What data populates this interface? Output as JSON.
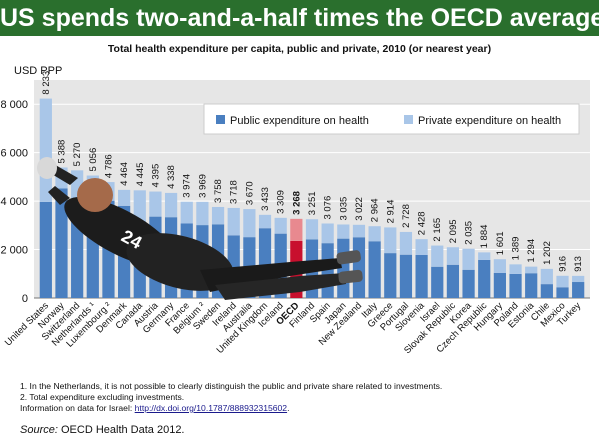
{
  "title": "US spends two-and-a-half times the OECD average",
  "chart_data": {
    "type": "bar",
    "subtitle": "Total health expenditure per capita, public and private, 2010 (or nearest year)",
    "ylabel": "USD PPP",
    "ylim": [
      0,
      9000
    ],
    "yticks": [
      0,
      2000,
      4000,
      6000,
      8000
    ],
    "ytick_labels": [
      "0",
      "2 000",
      "4 000",
      "6 000",
      "8 000"
    ],
    "stacked": true,
    "legend_placement": "top-right",
    "categories": [
      "United States",
      "Norway",
      "Switzerland",
      "Netherlands ¹",
      "Luxembourg ²",
      "Denmark",
      "Canada",
      "Austria",
      "Germany",
      "France",
      "Belgium ²",
      "Sweden",
      "Ireland",
      "Australia",
      "United Kingdom",
      "Iceland",
      "OECD",
      "Finland",
      "Spain",
      "Japan",
      "New Zealand",
      "Italy",
      "Greece",
      "Portugal",
      "Slovenia",
      "Israel",
      "Slovak Republic",
      "Korea",
      "Czech Republic",
      "Hungary",
      "Poland",
      "Estonia",
      "Chile",
      "Mexico",
      "Turkey"
    ],
    "total_labels": [
      "8 233",
      "5 388",
      "5 270",
      "5 056",
      "4 786",
      "4 464",
      "4 445",
      "4 395",
      "4 338",
      "3 974",
      "3 969",
      "3 758",
      "3 718",
      "3 670",
      "3 433",
      "3 309",
      "3 268",
      "3 251",
      "3 076",
      "3 035",
      "3 022",
      "2 964",
      "2 914",
      "2 728",
      "2 428",
      "2 165",
      "2 095",
      "2 035",
      "1 884",
      "1 601",
      "1 389",
      "1 294",
      "1 202",
      "916",
      "913"
    ],
    "series": [
      {
        "name": "Public expenditure on health",
        "color": "#4a7fc0",
        "highlight_color": "#c8102e",
        "values": [
          3967,
          4528,
          3420,
          4000,
          4017,
          3806,
          3157,
          3360,
          3336,
          3076,
          3010,
          3042,
          2586,
          2512,
          2881,
          2657,
          2356,
          2420,
          2264,
          2451,
          2508,
          2343,
          1853,
          1788,
          1777,
          1291,
          1372,
          1166,
          1573,
          1034,
          994,
          1023,
          573,
          443,
          660
        ]
      },
      {
        "name": "Private expenditure on health",
        "color": "#a9c6e8",
        "highlight_color": "#e8898f",
        "values": [
          4266,
          860,
          1850,
          1056,
          769,
          658,
          1288,
          1035,
          1002,
          898,
          959,
          716,
          1132,
          1158,
          552,
          652,
          912,
          831,
          812,
          584,
          514,
          621,
          1061,
          940,
          651,
          874,
          723,
          869,
          311,
          567,
          395,
          271,
          629,
          473,
          253
        ]
      }
    ],
    "highlight_category": "OECD"
  },
  "notes": [
    "1.  In the Netherlands, it is not possible to clearly distinguish the public and private share related to investments.",
    "2.  Total expenditure excluding investments."
  ],
  "info_label": "Information on data for Israel: ",
  "info_link": "http://dx.doi.org/10.1787/888932315602",
  "info_end": ".",
  "source_label": "Source:",
  "source_text": " OECD Health Data 2012."
}
